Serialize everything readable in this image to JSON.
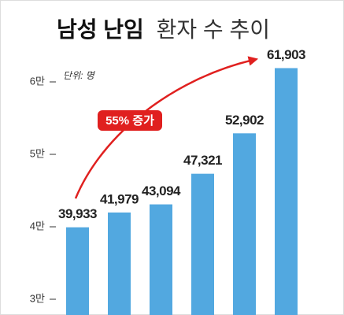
{
  "chart_data": {
    "type": "bar",
    "title_parts": [
      "남성 난임",
      "환자 수 추이"
    ],
    "unit_label": "단위: 명",
    "annotation": "55% 증가",
    "categories": [
      null,
      null,
      null,
      null,
      null,
      null
    ],
    "values": [
      39933,
      41979,
      43094,
      47321,
      52902,
      61903
    ],
    "value_labels": [
      "39,933",
      "41,979",
      "43,094",
      "47,321",
      "52,902",
      "61,903"
    ],
    "color": "#52a8e0",
    "annotation_color": "#e0201f",
    "ylim": [
      27826,
      71304
    ],
    "yticks": [
      {
        "value": 30000,
        "label": "3만"
      },
      {
        "value": 40000,
        "label": "4만"
      },
      {
        "value": 50000,
        "label": "5만"
      },
      {
        "value": 60000,
        "label": "6만"
      }
    ],
    "grid": false
  }
}
